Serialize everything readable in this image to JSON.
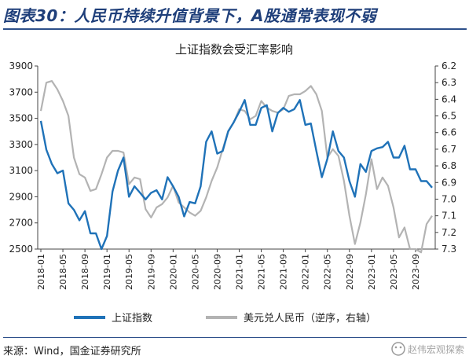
{
  "figure_title": "图表30：人民币持续升值背景下，A股通常表现不弱",
  "source_text": "来源：Wind，国金证券研究所",
  "watermark_text": "赵伟宏观探索",
  "colors": {
    "blue": "#1f72b8",
    "gray": "#b3b3b3",
    "title": "#1f3f7a"
  },
  "chart_data": {
    "type": "line",
    "title": "上证指数会受汇率影响",
    "x": [
      "2018-01",
      "2018-02",
      "2018-03",
      "2018-04",
      "2018-05",
      "2018-06",
      "2018-07",
      "2018-08",
      "2018-09",
      "2018-10",
      "2018-11",
      "2018-12",
      "2019-01",
      "2019-02",
      "2019-03",
      "2019-04",
      "2019-05",
      "2019-06",
      "2019-07",
      "2019-08",
      "2019-09",
      "2019-10",
      "2019-11",
      "2019-12",
      "2020-01",
      "2020-02",
      "2020-03",
      "2020-04",
      "2020-05",
      "2020-06",
      "2020-07",
      "2020-08",
      "2020-09",
      "2020-10",
      "2020-11",
      "2020-12",
      "2021-01",
      "2021-02",
      "2021-03",
      "2021-04",
      "2021-05",
      "2021-06",
      "2021-07",
      "2021-08",
      "2021-09",
      "2021-10",
      "2021-11",
      "2021-12",
      "2022-01",
      "2022-02",
      "2022-03",
      "2022-04",
      "2022-05",
      "2022-06",
      "2022-07",
      "2022-08",
      "2022-09",
      "2022-10",
      "2022-11",
      "2022-12",
      "2023-01",
      "2023-02",
      "2023-03",
      "2023-04",
      "2023-05",
      "2023-06",
      "2023-07",
      "2023-08",
      "2023-09",
      "2023-10",
      "2023-11",
      "2023-12"
    ],
    "x_tick_labels": [
      "2018-01",
      "2018-05",
      "2018-09",
      "2019-01",
      "2019-05",
      "2019-09",
      "2020-01",
      "2020-05",
      "2020-09",
      "2021-01",
      "2021-05",
      "2021-09",
      "2022-01",
      "2022-05",
      "2022-09",
      "2023-01",
      "2023-05",
      "2023-09"
    ],
    "series": [
      {
        "name": "上证指数",
        "axis": "left",
        "color": "#1f72b8",
        "values": [
          3480,
          3260,
          3150,
          3080,
          3100,
          2850,
          2800,
          2720,
          2790,
          2620,
          2620,
          2500,
          2600,
          2940,
          3100,
          3200,
          2900,
          2980,
          2930,
          2880,
          2930,
          2950,
          2880,
          3050,
          2980,
          2900,
          2750,
          2860,
          2850,
          2980,
          3320,
          3400,
          3230,
          3250,
          3400,
          3470,
          3550,
          3640,
          3450,
          3450,
          3580,
          3600,
          3400,
          3540,
          3580,
          3550,
          3570,
          3640,
          3450,
          3460,
          3250,
          3050,
          3190,
          3400,
          3250,
          3200,
          3020,
          2900,
          3150,
          3090,
          3250,
          3270,
          3280,
          3320,
          3200,
          3200,
          3290,
          3110,
          3110,
          3020,
          3020,
          2970
        ]
      },
      {
        "name": "美元兑人民币（逆序，右轴）",
        "axis": "right",
        "color": "#b3b3b3",
        "values": [
          6.47,
          6.3,
          6.29,
          6.34,
          6.41,
          6.5,
          6.75,
          6.85,
          6.87,
          6.95,
          6.94,
          6.85,
          6.75,
          6.71,
          6.71,
          6.72,
          6.91,
          6.87,
          6.88,
          7.06,
          7.11,
          7.05,
          7.03,
          6.99,
          6.92,
          7.02,
          7.05,
          7.08,
          7.1,
          7.07,
          6.99,
          6.89,
          6.81,
          6.7,
          6.59,
          6.54,
          6.46,
          6.47,
          6.52,
          6.5,
          6.41,
          6.45,
          6.47,
          6.48,
          6.46,
          6.38,
          6.37,
          6.37,
          6.35,
          6.32,
          6.37,
          6.47,
          6.75,
          6.7,
          6.74,
          6.89,
          7.1,
          7.27,
          7.14,
          6.97,
          6.76,
          6.94,
          6.87,
          6.92,
          7.05,
          7.23,
          7.17,
          7.3,
          7.3,
          7.32,
          7.15,
          7.1
        ]
      }
    ],
    "y_left": {
      "lim": [
        2500,
        3900
      ],
      "ticks": [
        2500,
        2700,
        2900,
        3100,
        3300,
        3500,
        3700,
        3900
      ]
    },
    "y_right": {
      "lim": [
        6.2,
        7.3
      ],
      "inverted": true,
      "ticks": [
        6.2,
        6.3,
        6.4,
        6.5,
        6.6,
        6.7,
        6.8,
        6.9,
        7.0,
        7.1,
        7.2,
        7.3
      ]
    },
    "grid": false,
    "legend_position": "bottom"
  }
}
